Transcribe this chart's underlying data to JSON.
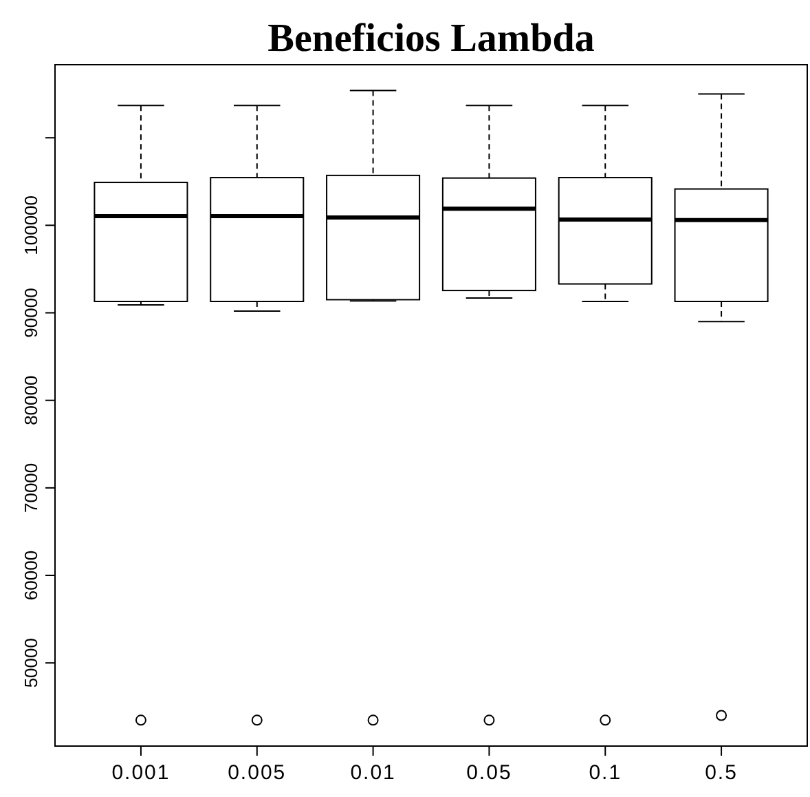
{
  "chart_data": {
    "type": "box",
    "title": "Beneficios Lambda",
    "categories": [
      "0.001",
      "0.005",
      "0.01",
      "0.05",
      "0.1",
      "0.5"
    ],
    "boxes": [
      {
        "low": 90900,
        "q1": 91300,
        "median": 101050,
        "q3": 104900,
        "high": 113700,
        "outliers": [
          43460
        ]
      },
      {
        "low": 90200,
        "q1": 91300,
        "median": 101050,
        "q3": 105450,
        "high": 113700,
        "outliers": [
          43460
        ]
      },
      {
        "low": 91350,
        "q1": 91500,
        "median": 100900,
        "q3": 105700,
        "high": 115400,
        "outliers": [
          43460
        ]
      },
      {
        "low": 91700,
        "q1": 92550,
        "median": 101900,
        "q3": 105400,
        "high": 113700,
        "outliers": [
          43460
        ]
      },
      {
        "low": 91300,
        "q1": 93300,
        "median": 100650,
        "q3": 105450,
        "high": 113700,
        "outliers": [
          43460
        ]
      },
      {
        "low": 89000,
        "q1": 91300,
        "median": 100600,
        "q3": 104150,
        "high": 115000,
        "outliers": [
          44000
        ]
      }
    ],
    "ylim": [
      40500,
      118350
    ],
    "yticks": [
      50000,
      60000,
      70000,
      80000,
      90000,
      100000,
      {
        "value": 110000,
        "label": null
      }
    ],
    "grid": false
  }
}
